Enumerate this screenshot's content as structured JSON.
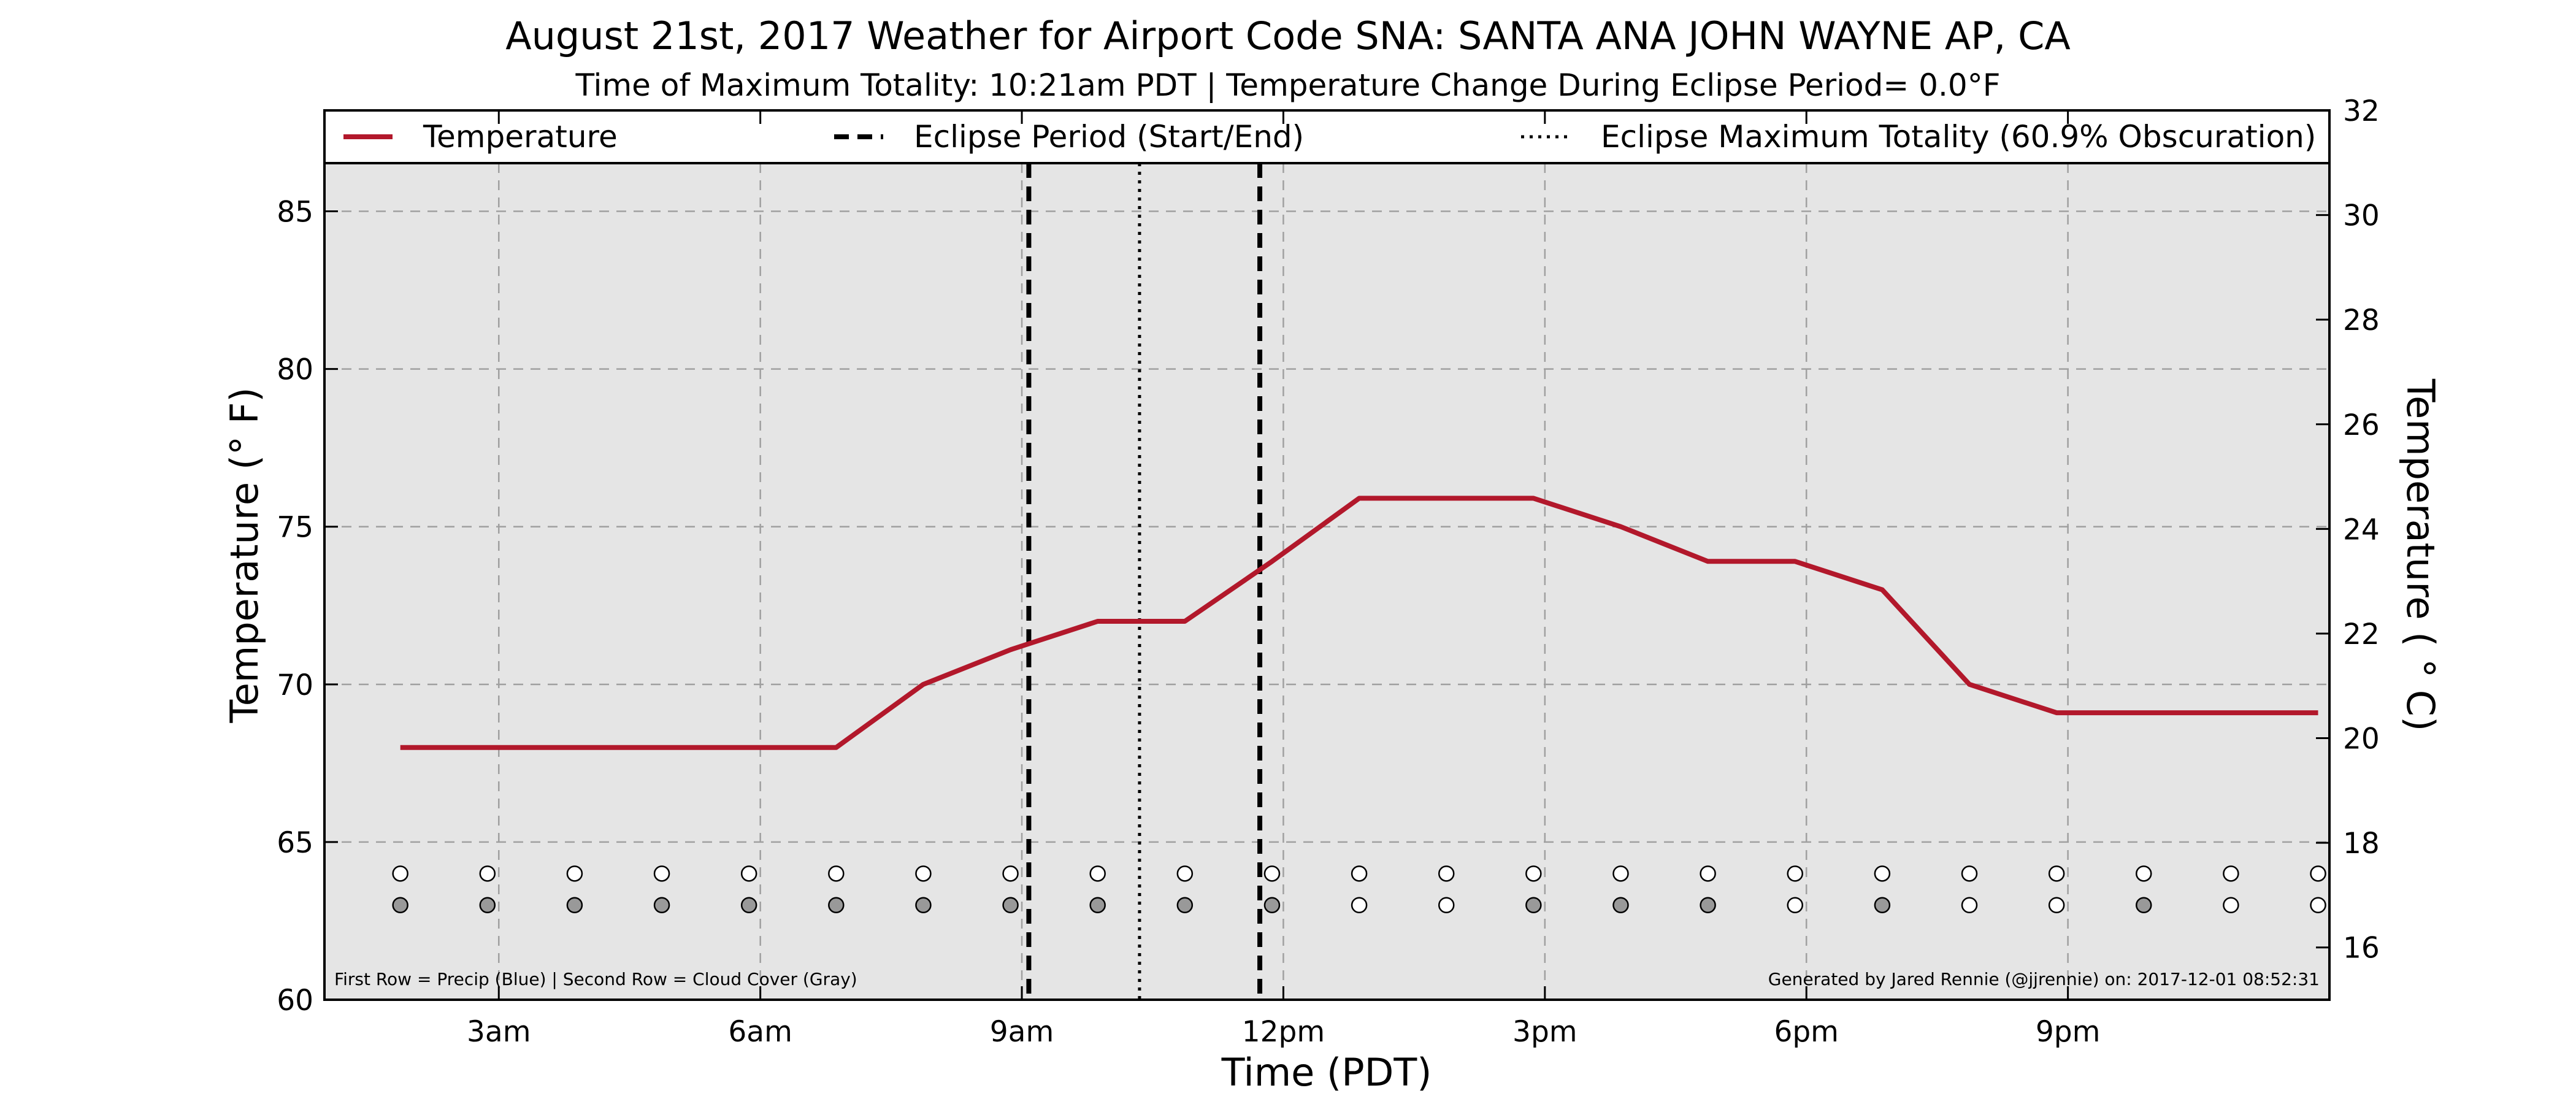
{
  "chart_data": {
    "type": "line",
    "title": "August 21st, 2017 Weather for Airport Code SNA: SANTA ANA JOHN WAYNE AP, CA",
    "subtitle": "Time of Maximum Totality: 10:21am PDT | Temperature Change During Eclipse Period= 0.0°F",
    "xlabel": "Time (PDT)",
    "ylabel_left": "Temperature (° F)",
    "ylabel_right": "Temperature ( ° C)",
    "xlim": [
      1.0,
      24.0
    ],
    "ylim_left": [
      60,
      88.2
    ],
    "ylim_right": [
      15.0,
      32.0
    ],
    "x_ticks": [
      {
        "x": 3,
        "label": "3am"
      },
      {
        "x": 6,
        "label": "6am"
      },
      {
        "x": 9,
        "label": "9am"
      },
      {
        "x": 12,
        "label": "12pm"
      },
      {
        "x": 15,
        "label": "3pm"
      },
      {
        "x": 18,
        "label": "6pm"
      },
      {
        "x": 21,
        "label": "9pm"
      }
    ],
    "y_ticks_left": [
      "60",
      "65",
      "70",
      "75",
      "80",
      "85"
    ],
    "y_ticks_right": [
      "16",
      "18",
      "20",
      "22",
      "24",
      "26",
      "28",
      "30",
      "32"
    ],
    "grid": true,
    "legend_position": "top",
    "legend": [
      {
        "label": "Temperature",
        "style": "solid"
      },
      {
        "label": "Eclipse Period (Start/End)",
        "style": "dashed"
      },
      {
        "label": "Eclipse Maximum Totality (60.9% Obscuration)",
        "style": "dotted"
      }
    ],
    "series": [
      {
        "name": "Temperature",
        "color": "#b2182b",
        "x": [
          1.87,
          2.87,
          3.87,
          4.87,
          5.87,
          6.87,
          7.87,
          8.87,
          9.87,
          10.87,
          11.87,
          12.87,
          13.87,
          14.87,
          15.87,
          16.87,
          17.87,
          18.87,
          19.87,
          20.87,
          21.87,
          22.87,
          23.87
        ],
        "y": [
          68,
          68,
          68,
          68,
          68,
          68,
          70,
          71.1,
          72,
          72,
          73.9,
          75.9,
          75.9,
          75.9,
          75,
          73.9,
          73.9,
          73,
          70,
          69.1,
          69.1,
          69.1,
          69.1
        ]
      }
    ],
    "eclipse_start_x": 9.08,
    "eclipse_max_x": 10.35,
    "eclipse_end_x": 11.73,
    "precip_row": {
      "y": 64,
      "x": [
        1.87,
        2.87,
        3.87,
        4.87,
        5.87,
        6.87,
        7.87,
        8.87,
        9.87,
        10.87,
        11.87,
        12.87,
        13.87,
        14.87,
        15.87,
        16.87,
        17.87,
        18.87,
        19.87,
        20.87,
        21.87,
        22.87,
        23.87
      ],
      "filled": [
        false,
        false,
        false,
        false,
        false,
        false,
        false,
        false,
        false,
        false,
        false,
        false,
        false,
        false,
        false,
        false,
        false,
        false,
        false,
        false,
        false,
        false,
        false
      ]
    },
    "cloud_row": {
      "y": 63,
      "x": [
        1.87,
        2.87,
        3.87,
        4.87,
        5.87,
        6.87,
        7.87,
        8.87,
        9.87,
        10.87,
        11.87,
        12.87,
        13.87,
        14.87,
        15.87,
        16.87,
        17.87,
        18.87,
        19.87,
        20.87,
        21.87,
        22.87,
        23.87
      ],
      "filled": [
        true,
        true,
        true,
        true,
        true,
        true,
        true,
        true,
        true,
        true,
        true,
        false,
        false,
        true,
        true,
        true,
        false,
        true,
        false,
        false,
        true,
        false,
        false
      ]
    },
    "footnote_left": "First Row = Precip (Blue) | Second Row = Cloud Cover (Gray)",
    "footnote_right": "Generated by Jared Rennie (@jjrennie) on: 2017-12-01 08:52:31",
    "colors": {
      "plot_background": "#e5e5e5",
      "temperature_line": "#b2182b",
      "eclipse_lines": "#000000",
      "grid": "#a0a0a0",
      "cloud_fill": "#999999"
    }
  }
}
